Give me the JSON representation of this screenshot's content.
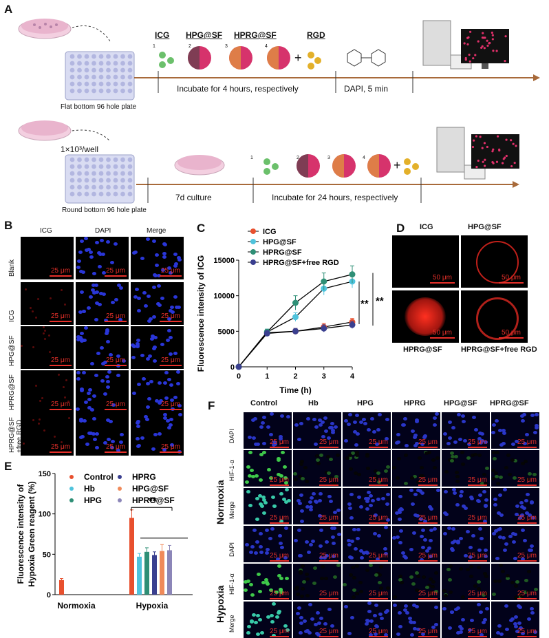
{
  "panelA": {
    "label": "A",
    "row1": {
      "plate_label": "Flat bottom 96 hole plate",
      "reagents": [
        "ICG",
        "HPG@SF",
        "HPRG@SF",
        "RGD"
      ],
      "numbers": [
        "1",
        "2",
        "3",
        "4"
      ],
      "plus": "+",
      "step1": "Incubate for 4 hours, respectively",
      "step2": "DAPI, 5 min"
    },
    "row2": {
      "density": "1×10³/well",
      "plate_label": "Round bottom 96 hole plate",
      "step1": "7d culture",
      "step2": "Incubate for 24 hours, respectively",
      "numbers": [
        "1",
        "2",
        "3",
        "4"
      ],
      "plus": "+"
    }
  },
  "panelB": {
    "label": "B",
    "columns": [
      "ICG",
      "DAPI",
      "Merge"
    ],
    "rows": [
      "Blank",
      "ICG",
      "HPG@SF",
      "HPRG@SF",
      "HPRG@SF\n+free RGD"
    ],
    "scale": "25 μm"
  },
  "panelC": {
    "label": "C",
    "significance": [
      "**",
      "**"
    ],
    "chart_data": {
      "type": "line",
      "xlabel": "Time (h)",
      "ylabel": "Fluorescence intensity of ICG",
      "x": [
        0,
        1,
        2,
        3,
        4
      ],
      "xlim": [
        0,
        4
      ],
      "ylim": [
        0,
        15000
      ],
      "yticks": [
        0,
        5000,
        10000,
        15000
      ],
      "xticks": [
        0,
        1,
        2,
        3,
        4
      ],
      "legend_position": "top-left",
      "series": [
        {
          "name": "ICG",
          "color": "#e8502e",
          "values": [
            0,
            4800,
            5000,
            5600,
            6300
          ],
          "err": [
            0,
            400,
            400,
            500,
            500
          ]
        },
        {
          "name": "HPG@SF",
          "color": "#4fc3dc",
          "values": [
            0,
            4900,
            7000,
            11000,
            12000
          ],
          "err": [
            0,
            400,
            600,
            900,
            900
          ]
        },
        {
          "name": "HPRG@SF",
          "color": "#2e8f76",
          "values": [
            0,
            4900,
            9000,
            12000,
            13000
          ],
          "err": [
            0,
            400,
            1000,
            1200,
            1200
          ]
        },
        {
          "name": "HPRG@SF+free RGD",
          "color": "#3a3f8f",
          "values": [
            0,
            4700,
            5000,
            5400,
            5900
          ],
          "err": [
            0,
            400,
            400,
            500,
            500
          ]
        }
      ]
    }
  },
  "panelD": {
    "label": "D",
    "titles": [
      "ICG",
      "HPG@SF",
      "HPRG@SF",
      "HPRG@SF+free RGD"
    ],
    "scale": "50 μm"
  },
  "panelE": {
    "label": "E",
    "significance": "**",
    "chart_data": {
      "type": "bar",
      "categories": [
        "Normoxia",
        "Hypoxia"
      ],
      "ylabel": "Fluorescence intensity of\nHypoxia Green reagent (%)",
      "ylim": [
        0,
        150
      ],
      "yticks": [
        0,
        50,
        100,
        150
      ],
      "legend_position": "top",
      "series": [
        {
          "name": "Control",
          "color": "#e8502e",
          "values": [
            18,
            95
          ],
          "err": [
            2,
            10
          ]
        },
        {
          "name": "Hb",
          "color": "#4fc3dc",
          "values": [
            0,
            47
          ],
          "err": [
            0,
            4
          ]
        },
        {
          "name": "HPG",
          "color": "#2e8f76",
          "values": [
            0,
            53
          ],
          "err": [
            0,
            5
          ]
        },
        {
          "name": "HPRG",
          "color": "#3a3f8f",
          "values": [
            0,
            49
          ],
          "err": [
            0,
            4
          ]
        },
        {
          "name": "HPG@SF",
          "color": "#f08a5a",
          "values": [
            0,
            54
          ],
          "err": [
            0,
            8
          ]
        },
        {
          "name": "HPRG@SF",
          "color": "#8c86b8",
          "values": [
            0,
            55
          ],
          "err": [
            0,
            6
          ]
        }
      ]
    }
  },
  "panelF": {
    "label": "F",
    "columns": [
      "Control",
      "Hb",
      "HPG",
      "HPRG",
      "HPG@SF",
      "HPRG@SF"
    ],
    "rows": [
      "DAPI",
      "HIF-1-α",
      "Merge",
      "DAPI",
      "HIF-1-α",
      "Merge"
    ],
    "groups": [
      "Normoxia",
      "Hypoxia"
    ],
    "scale": "25 μm"
  }
}
